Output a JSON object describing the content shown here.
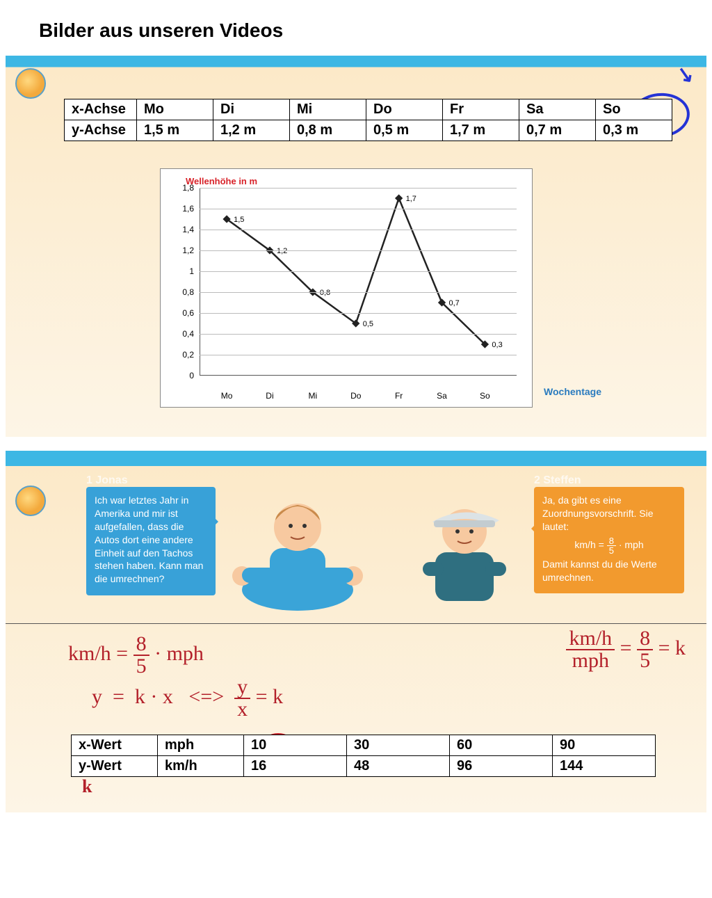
{
  "page_title": "Bilder aus unseren Videos",
  "colors": {
    "sky": "#3db7e4",
    "sand_top": "#fce9c8",
    "sand_bottom": "#fdf5e6",
    "chart_title": "#d8232a",
    "chart_xlabel": "#2a7bbf",
    "annotation_blue": "#2433d6",
    "annotation_red": "#b3202a",
    "speech_blue": "#38a1d8",
    "speech_orange": "#f29a2e",
    "grid": "#bbbbbb",
    "line": "#222222"
  },
  "slide1": {
    "table": {
      "row_headers": [
        "x-Achse",
        "y-Achse"
      ],
      "columns": [
        "Mo",
        "Di",
        "Mi",
        "Do",
        "Fr",
        "Sa",
        "So"
      ],
      "y_values": [
        "1,5 m",
        "1,2 m",
        "0,8 m",
        "0,5 m",
        "1,7 m",
        "0,7 m",
        "0,3 m"
      ]
    },
    "chart": {
      "type": "line",
      "title": "Wellenhöhe in m",
      "xlabel": "Wochentage",
      "x_categories": [
        "Mo",
        "Di",
        "Mi",
        "Do",
        "Fr",
        "Sa",
        "So"
      ],
      "y_values": [
        1.5,
        1.2,
        0.8,
        0.5,
        1.7,
        0.7,
        0.3
      ],
      "point_labels": [
        "1,5",
        "1,2",
        "0,8",
        "0,5",
        "1,7",
        "0,7",
        "0,3"
      ],
      "ylim": [
        0,
        1.8
      ],
      "ytick_step": 0.2,
      "y_ticks": [
        "0",
        "0,2",
        "0,4",
        "0,6",
        "0,8",
        "1",
        "1,2",
        "1,4",
        "1,6",
        "1,8"
      ],
      "line_color": "#222222",
      "line_width": 2.5,
      "marker": "diamond",
      "marker_size": 8,
      "grid_color": "#bbbbbb",
      "background": "#ffffff"
    },
    "annotation": {
      "circled_column": "So",
      "arrow": true
    }
  },
  "slide2": {
    "speech1": {
      "label": "1 Jonas",
      "text": "Ich war letztes Jahr in Amerika und mir ist aufgefallen, dass die Autos dort eine andere Einheit auf den Tachos stehen haben. Kann man die umrechnen?"
    },
    "speech2": {
      "label": "2 Steffen",
      "text_before": "Ja, da gibt es eine Zuordnungsvorschrift. Sie lautet:",
      "formula_lhs": "km/h =",
      "formula_num": "8",
      "formula_den": "5",
      "formula_rhs": "· mph",
      "text_after": "Damit kannst du die Werte umrechnen."
    },
    "handwriting": {
      "line1": "km/h = 8/5 · mph",
      "line2": "y = k · x   <=>   y/x = k",
      "right": "(km/h)/mph = 8/5 = k",
      "below_table": "k"
    },
    "table": {
      "row_headers": [
        "x-Wert",
        "y-Wert"
      ],
      "col_labels": [
        "mph",
        "km/h"
      ],
      "x_values": [
        "10",
        "30",
        "60",
        "90"
      ],
      "y_values": [
        "16",
        "48",
        "96",
        "144"
      ],
      "circled_cell": "10"
    }
  }
}
